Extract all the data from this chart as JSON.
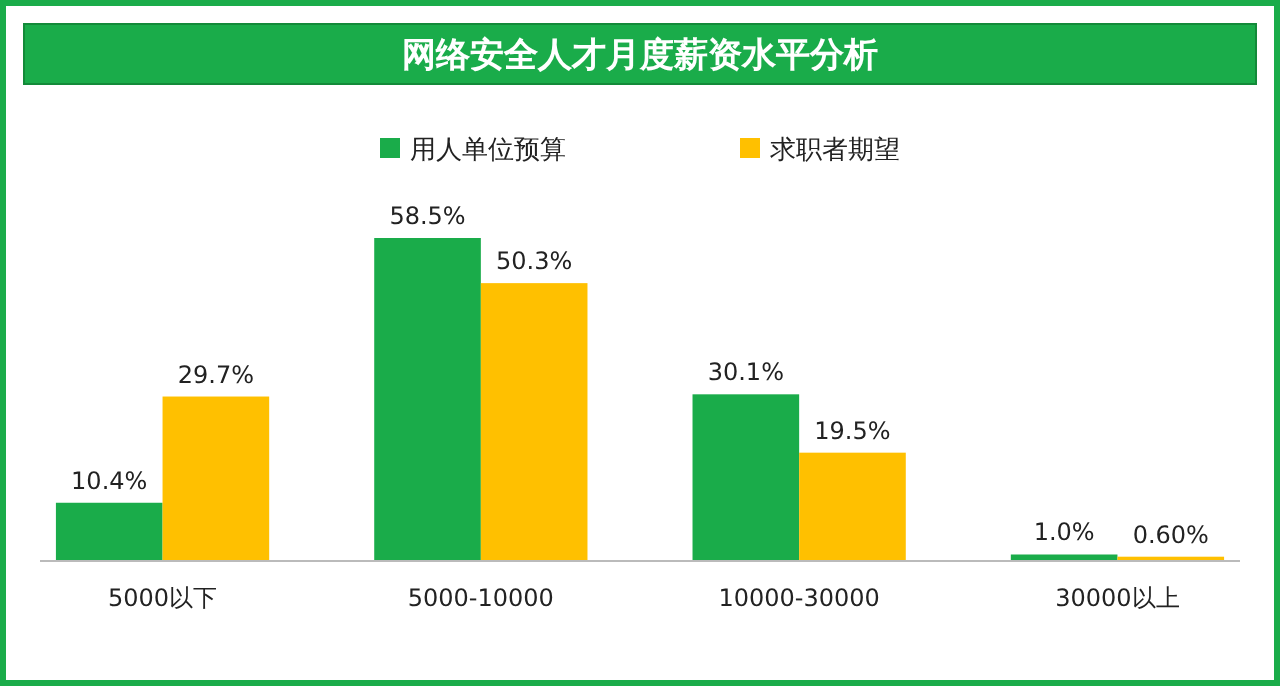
{
  "chart_data": {
    "type": "bar",
    "title": "网络安全人才月度薪资水平分析",
    "categories": [
      "5000以下",
      "5000-10000",
      "10000-30000",
      "30000以上"
    ],
    "series": [
      {
        "name": "用人单位预算",
        "color": "#1aac4a",
        "values": [
          10.4,
          58.5,
          30.1,
          1.0
        ],
        "value_labels": [
          "10.4%",
          "58.5%",
          "30.1%",
          "1.0%"
        ]
      },
      {
        "name": "求职者期望",
        "color": "#ffc000",
        "values": [
          29.7,
          50.3,
          19.5,
          0.6
        ],
        "value_labels": [
          "29.7%",
          "50.3%",
          "19.5%",
          "0.60%"
        ]
      }
    ],
    "legend": "top"
  }
}
